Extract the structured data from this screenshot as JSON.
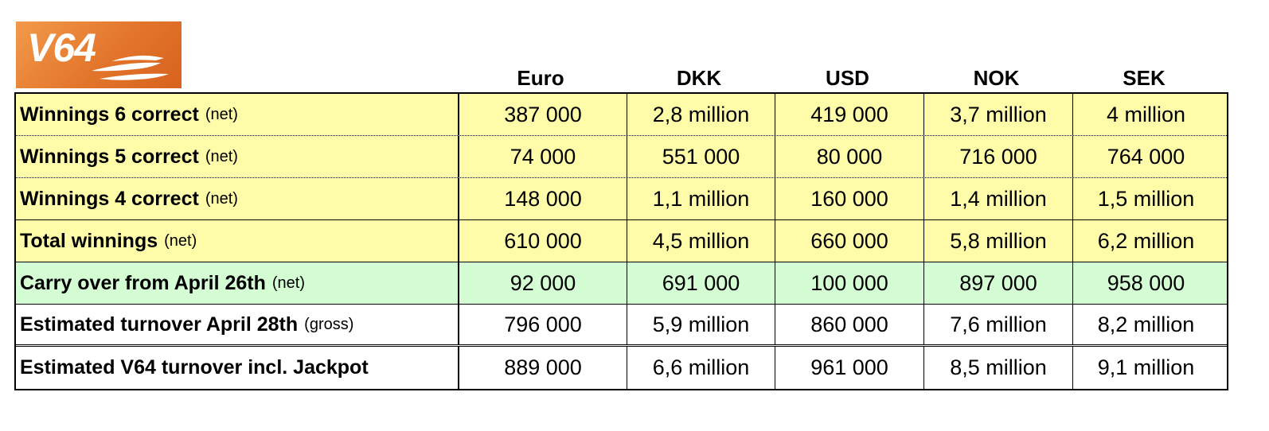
{
  "logo": {
    "text": "V64",
    "colors": {
      "light": "#f29a4a",
      "dark": "#d8621e"
    }
  },
  "columns": [
    "Euro",
    "DKK",
    "USD",
    "NOK",
    "SEK"
  ],
  "rows": [
    {
      "label": "Winnings 6 correct",
      "note": "(net)",
      "values": [
        "387 000",
        "2,8 million",
        "419 000",
        "3,7 million",
        "4 million"
      ]
    },
    {
      "label": "Winnings 5 correct",
      "note": "(net)",
      "values": [
        "74 000",
        "551 000",
        "80 000",
        "716 000",
        "764 000"
      ]
    },
    {
      "label": "Winnings 4 correct",
      "note": "(net)",
      "values": [
        "148 000",
        "1,1 million",
        "160 000",
        "1,4 million",
        "1,5 million"
      ]
    },
    {
      "label": "Total winnings",
      "note": "(net)",
      "values": [
        "610 000",
        "4,5 million",
        "660 000",
        "5,8 million",
        "6,2 million"
      ]
    },
    {
      "label": "Carry over from April 26th",
      "note": "(net)",
      "values": [
        "92 000",
        "691 000",
        "100 000",
        "897 000",
        "958 000"
      ]
    },
    {
      "label": "Estimated turnover April 28th",
      "note": "(gross)",
      "values": [
        "796 000",
        "5,9 million",
        "860 000",
        "7,6 million",
        "8,2 million"
      ]
    },
    {
      "label": "Estimated V64 turnover incl. Jackpot",
      "note": "",
      "values": [
        "889 000",
        "6,6 million",
        "961 000",
        "8,5 million",
        "9,1 million"
      ]
    }
  ],
  "colors": {
    "yellow_rows": "#fefba9",
    "green_row": "#d4fdd3",
    "white_rows": "#ffffff"
  }
}
